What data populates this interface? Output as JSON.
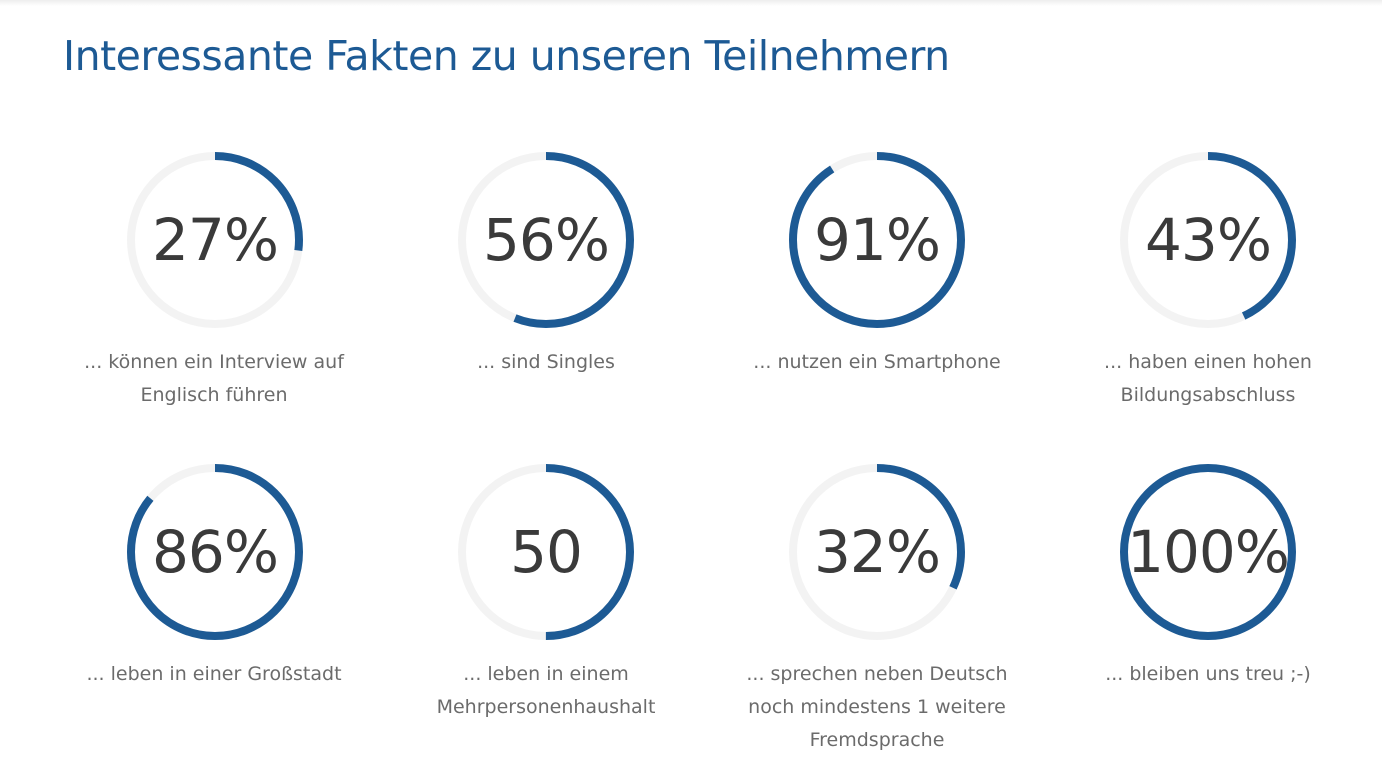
{
  "page": {
    "title": "Interessante Fakten zu unseren Teilnehmern"
  },
  "colors": {
    "accent": "#1d5a94",
    "track": "#f3f3f3",
    "value_text": "#3a3a3a",
    "caption_text": "#6b6b6b",
    "title": "#1d5a94"
  },
  "facts": [
    {
      "value_label": "27%",
      "progress": 0.27,
      "caption": "... können ein Interview auf Englisch führen"
    },
    {
      "value_label": "56%",
      "progress": 0.56,
      "caption": "... sind Singles"
    },
    {
      "value_label": "91%",
      "progress": 0.91,
      "caption": "... nutzen ein Smartphone"
    },
    {
      "value_label": "43%",
      "progress": 0.43,
      "caption": "... haben einen hohen Bildungsabschluss"
    },
    {
      "value_label": "86%",
      "progress": 0.86,
      "caption": "... leben in einer Großstadt"
    },
    {
      "value_label": "50",
      "progress": 0.5,
      "caption": "... leben in einem Mehrpersonenhaushalt"
    },
    {
      "value_label": "32%",
      "progress": 0.32,
      "caption": "... sprechen neben Deutsch noch mindestens 1 weitere Fremdsprache"
    },
    {
      "value_label": "100%",
      "progress": 1.0,
      "caption": "... bleiben uns treu ;-)"
    }
  ]
}
